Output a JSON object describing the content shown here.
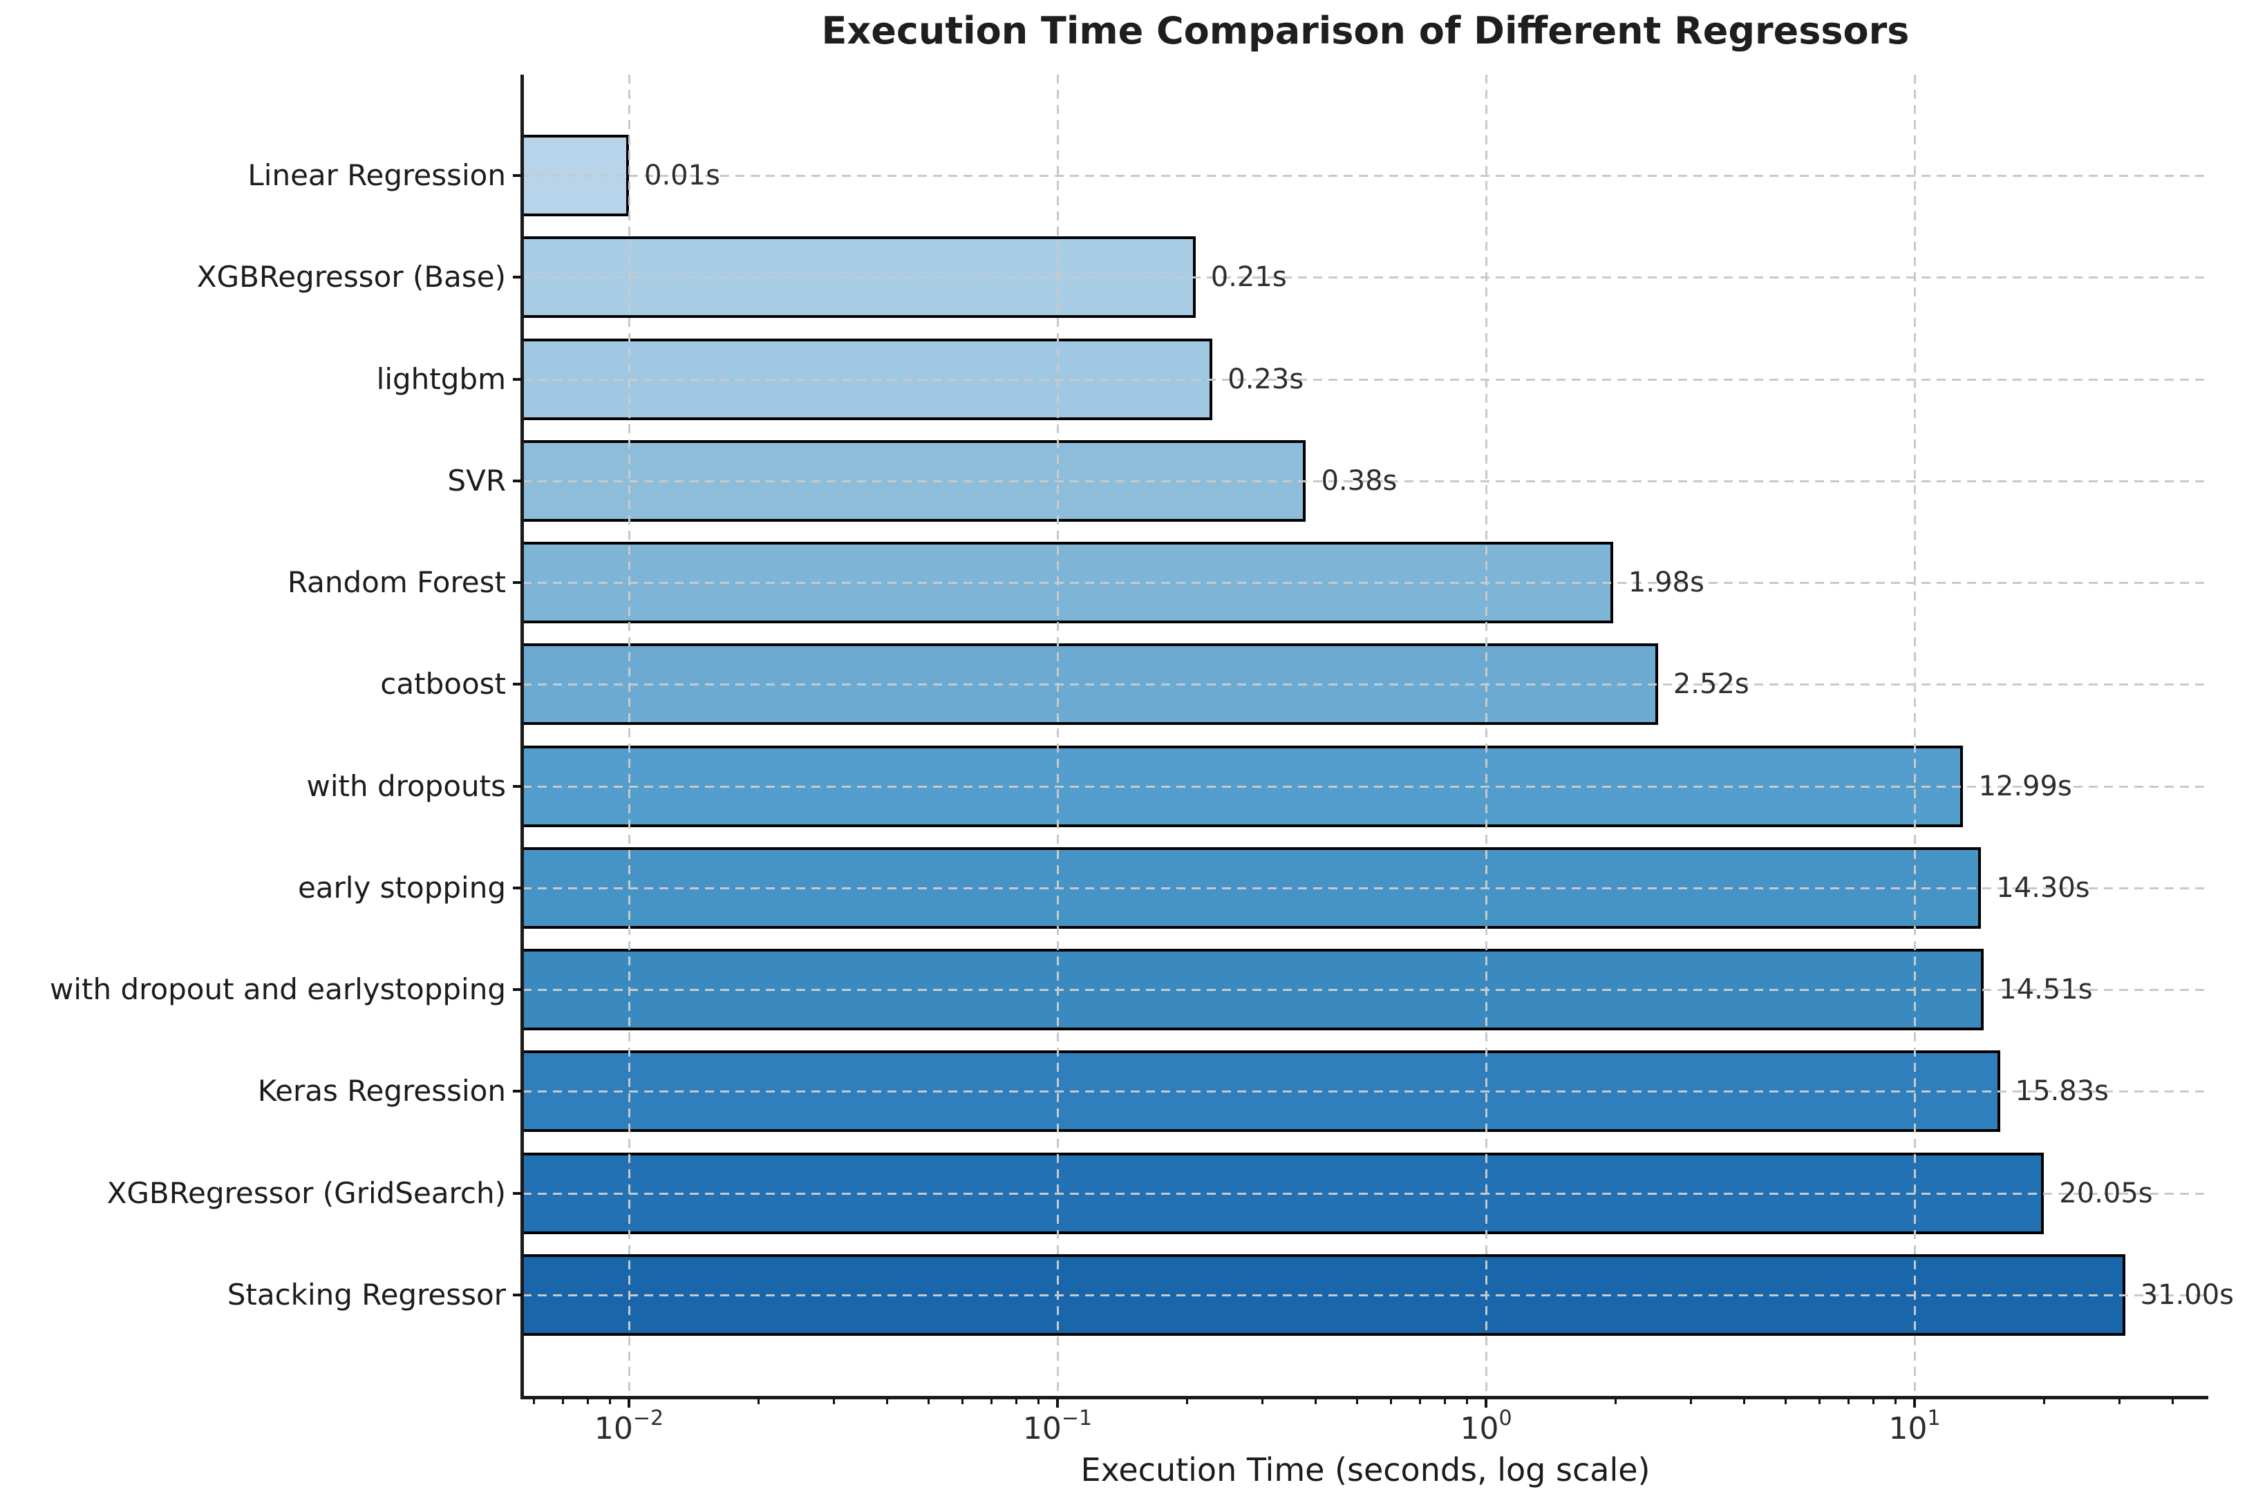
{
  "title": "Execution Time Comparison of Different Regressors",
  "x_axis_label": "Execution Time (seconds, log scale)",
  "chart_data": {
    "type": "bar",
    "orientation": "horizontal",
    "x_scale": "log",
    "grid": {
      "style": "dashed",
      "color": "#c9c9c9",
      "drawn_above_bars": true
    },
    "legend": "none",
    "title": "Execution Time Comparison of Different Regressors",
    "xlabel": "Execution Time (seconds, log scale)",
    "categories": [
      "Linear Regression",
      "XGBRegressor (Base)",
      "lightgbm",
      "SVR",
      "Random Forest",
      "catboost",
      "with dropouts",
      "early stopping",
      "with dropout and earlystopping",
      "Keras Regression",
      "XGBRegressor (GridSearch)",
      "Stacking Regressor"
    ],
    "values": [
      0.01,
      0.21,
      0.23,
      0.38,
      1.98,
      2.52,
      12.99,
      14.3,
      14.51,
      15.83,
      20.05,
      31.0
    ],
    "value_labels": [
      "0.01s",
      "0.21s",
      "0.23s",
      "0.38s",
      "1.98s",
      "2.52s",
      "12.99s",
      "14.30s",
      "14.51s",
      "15.83s",
      "20.05s",
      "31.00s"
    ],
    "bar_colors": [
      "#b8d4ea",
      "#aacde6",
      "#a1c8e3",
      "#8ebddb",
      "#7eb4d6",
      "#6caad1",
      "#549ecd",
      "#4694c6",
      "#3a8ac0",
      "#2e7fbc",
      "#2272b3",
      "#1a66ab"
    ],
    "bar_edge_color": "#000000",
    "xlim_log10": [
      -2.248,
      1.685
    ],
    "x_tick_exponents": [
      -2,
      -1,
      0,
      1
    ],
    "x_tick_labels": [
      {
        "base": "10",
        "exp": "−2"
      },
      {
        "base": "10",
        "exp": "−1"
      },
      {
        "base": "10",
        "exp": "0"
      },
      {
        "base": "10",
        "exp": "1"
      }
    ]
  }
}
